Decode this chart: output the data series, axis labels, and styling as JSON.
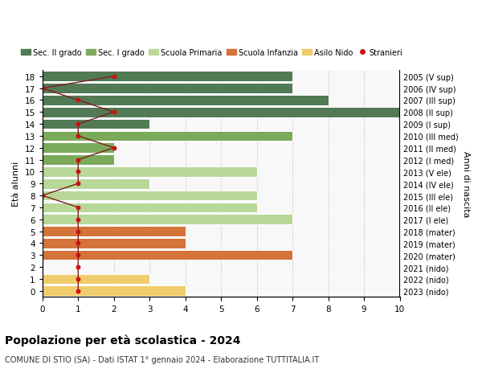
{
  "ages": [
    18,
    17,
    16,
    15,
    14,
    13,
    12,
    11,
    10,
    9,
    8,
    7,
    6,
    5,
    4,
    3,
    2,
    1,
    0
  ],
  "right_labels": [
    "2005 (V sup)",
    "2006 (IV sup)",
    "2007 (III sup)",
    "2008 (II sup)",
    "2009 (I sup)",
    "2010 (III med)",
    "2011 (II med)",
    "2012 (I med)",
    "2013 (V ele)",
    "2014 (IV ele)",
    "2015 (III ele)",
    "2016 (II ele)",
    "2017 (I ele)",
    "2018 (mater)",
    "2019 (mater)",
    "2020 (mater)",
    "2021 (nido)",
    "2022 (nido)",
    "2023 (nido)"
  ],
  "bar_values": [
    7,
    7,
    8,
    10,
    3,
    7,
    2,
    2,
    6,
    3,
    6,
    6,
    7,
    4,
    4,
    7,
    0,
    3,
    4
  ],
  "bar_colors": [
    "#527a55",
    "#527a55",
    "#527a55",
    "#527a55",
    "#527a55",
    "#7aaa5a",
    "#7aaa5a",
    "#7aaa5a",
    "#b8d898",
    "#b8d898",
    "#b8d898",
    "#b8d898",
    "#b8d898",
    "#d4733a",
    "#d4733a",
    "#d4733a",
    "#f0cc6a",
    "#f0cc6a",
    "#f0cc6a"
  ],
  "stranieri_x": [
    2,
    0,
    1,
    2,
    1,
    1,
    2,
    1,
    1,
    1,
    0,
    1,
    1,
    1,
    1,
    1,
    1,
    1,
    1
  ],
  "legend_labels": [
    "Sec. II grado",
    "Sec. I grado",
    "Scuola Primaria",
    "Scuola Infanzia",
    "Asilo Nido",
    "Stranieri"
  ],
  "legend_colors": [
    "#527a55",
    "#7aaa5a",
    "#b8d898",
    "#d4733a",
    "#f0cc6a",
    "#cc1111"
  ],
  "ylabel_left": "Età alunni",
  "ylabel_right": "Anni di nascita",
  "title": "Popolazione per età scolastica - 2024",
  "subtitle": "COMUNE DI STIO (SA) - Dati ISTAT 1° gennaio 2024 - Elaborazione TUTTITALIA.IT",
  "xlim": [
    0,
    10
  ],
  "xticks": [
    0,
    1,
    2,
    3,
    4,
    5,
    6,
    7,
    8,
    9,
    10
  ],
  "bg_color": "#ffffff",
  "plot_bg_color": "#f8f8f8",
  "stranieri_line_color": "#7a2020",
  "stranieri_dot_color": "#cc1111"
}
